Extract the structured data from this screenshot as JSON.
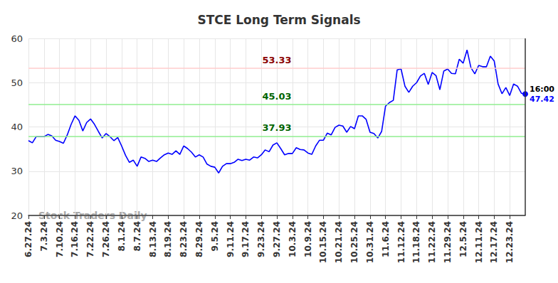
{
  "chart_data": {
    "type": "line",
    "title": "STCE Long Term Signals",
    "x": [
      "6.27.24",
      null,
      null,
      null,
      "7.3.24",
      null,
      null,
      null,
      "7.10.24",
      null,
      null,
      null,
      "7.16.24",
      null,
      null,
      null,
      "7.22.24",
      null,
      null,
      null,
      "7.26.24",
      null,
      null,
      null,
      "8.1.24",
      null,
      null,
      null,
      "8.7.24",
      null,
      null,
      null,
      "8.13.24",
      null,
      null,
      null,
      "8.19.24",
      null,
      null,
      null,
      "8.23.24",
      null,
      null,
      null,
      "8.29.24",
      null,
      null,
      null,
      "9.5.24",
      null,
      null,
      null,
      "9.11.24",
      null,
      null,
      null,
      "9.17.24",
      null,
      null,
      null,
      "9.23.24",
      null,
      null,
      null,
      "9.27.24",
      null,
      null,
      null,
      "10.3.24",
      null,
      null,
      null,
      "10.9.24",
      null,
      null,
      null,
      "10.15.24",
      null,
      null,
      null,
      "10.21.24",
      null,
      null,
      null,
      "10.25.24",
      null,
      null,
      null,
      "10.31.24",
      null,
      null,
      null,
      "11.6.24",
      null,
      null,
      null,
      "11.12.24",
      null,
      null,
      null,
      "11.18.24",
      null,
      null,
      null,
      "11.22.24",
      null,
      null,
      null,
      "11.29.24",
      null,
      null,
      null,
      "12.5.24",
      null,
      null,
      null,
      "12.11.24",
      null,
      null,
      null,
      "12.17.24",
      null,
      null,
      null,
      "12.23.24",
      null,
      null,
      null,
      null
    ],
    "series": [
      {
        "name": "STCE",
        "color": "#0000ff",
        "values": [
          36.9,
          36.4,
          37.8,
          37.8,
          37.8,
          38.3,
          38.0,
          37.0,
          36.7,
          36.3,
          38.2,
          40.6,
          42.5,
          41.5,
          39.1,
          41.0,
          41.8,
          40.6,
          39.0,
          37.5,
          38.5,
          37.8,
          36.9,
          37.6,
          35.7,
          33.6,
          32.0,
          32.5,
          31.1,
          33.2,
          32.9,
          32.2,
          32.5,
          32.2,
          33.0,
          33.7,
          34.1,
          33.8,
          34.6,
          33.8,
          35.7,
          35.1,
          34.3,
          33.2,
          33.7,
          33.2,
          31.6,
          31.1,
          30.9,
          29.6,
          31.1,
          31.7,
          31.7,
          32.0,
          32.7,
          32.4,
          32.7,
          32.5,
          33.2,
          33.0,
          33.7,
          34.8,
          34.4,
          35.9,
          36.4,
          35.1,
          33.7,
          34.0,
          34.0,
          35.3,
          34.9,
          34.8,
          34.1,
          33.8,
          35.7,
          37.0,
          37.0,
          38.6,
          38.2,
          39.9,
          40.4,
          40.2,
          38.8,
          40.1,
          39.6,
          42.5,
          42.5,
          41.7,
          38.8,
          38.5,
          37.5,
          39.0,
          44.7,
          45.5,
          46.0,
          52.9,
          53.1,
          49.2,
          47.8,
          49.2,
          50.0,
          51.5,
          52.1,
          49.6,
          52.3,
          51.6,
          48.4,
          52.6,
          53.1,
          52.1,
          52.0,
          55.3,
          54.4,
          57.4,
          53.4,
          52.0,
          53.9,
          53.6,
          53.6,
          56.0,
          54.9,
          49.7,
          47.5,
          48.9,
          47.1,
          49.7,
          49.2,
          47.6,
          47.42
        ]
      }
    ],
    "ylim": [
      20,
      60
    ],
    "yticks": [
      20,
      30,
      40,
      50,
      60
    ],
    "grid": true,
    "lines": [
      {
        "value": 53.33,
        "label": "53.33",
        "color": "#ffcccc",
        "text_color": "#8b0000"
      },
      {
        "value": 45.03,
        "label": "45.03",
        "color": "#90ee90",
        "text_color": "#006400"
      },
      {
        "value": 37.93,
        "label": "37.93",
        "color": "#90ee90",
        "text_color": "#006400"
      }
    ],
    "end_label": "16:00",
    "watermark": "Stock Traders Daily"
  }
}
